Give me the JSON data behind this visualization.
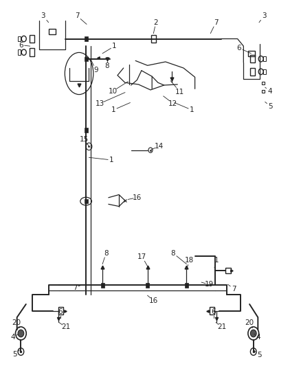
{
  "bg_color": "#ffffff",
  "line_color": "#222222",
  "label_color": "#222222",
  "main_lw": 1.4,
  "thin_lw": 0.9,
  "fs": 7.5
}
